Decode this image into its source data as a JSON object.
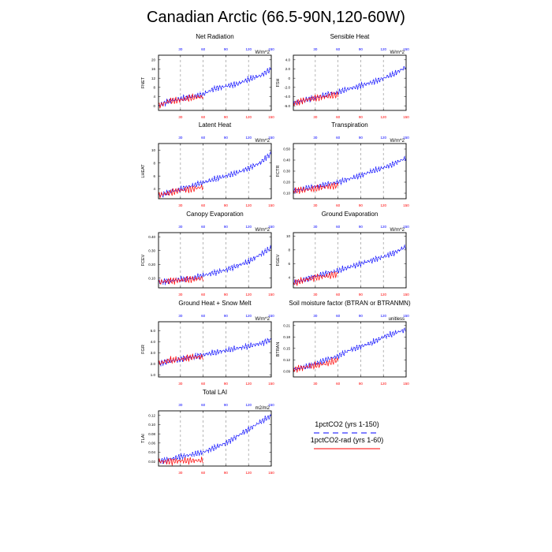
{
  "title": "Canadian Arctic (66.5-90N,120-60W)",
  "top_ticks": [
    "30",
    "60",
    "90",
    "120",
    "150"
  ],
  "bottom_ticks": [
    "30",
    "60",
    "90",
    "120",
    "150"
  ],
  "colors": {
    "series_a": "#0000ff",
    "series_b": "#ff0000",
    "top_tick": "#0000ff",
    "bottom_tick": "#ff0000",
    "dashed_grid": "#999999"
  },
  "legend": {
    "entries": [
      {
        "label": "1pctCO2 (yrs 1-150)",
        "color": "#0000ff",
        "style": "dashed"
      },
      {
        "label": "1pctCO2-rad (yrs 1-60)",
        "color": "#ff0000",
        "style": "solid"
      }
    ]
  },
  "chart_data": [
    {
      "type": "line",
      "title": "Net Radiation",
      "ylabel": "FNET",
      "units": "W/m^2",
      "xlim": [
        1,
        150
      ],
      "ylim": [
        -2,
        22
      ],
      "yticks": [
        "0",
        "4",
        "8",
        "12",
        "16",
        "20"
      ],
      "grid": "dashed vertical at 30, 60, 90, 120",
      "series": [
        {
          "color": "#0000ff",
          "x": [
            1,
            15,
            30,
            45,
            60,
            75,
            90,
            105,
            120,
            135,
            150
          ],
          "values": [
            0,
            2,
            3,
            4,
            5,
            7.5,
            8.5,
            9.5,
            11.5,
            13,
            16
          ]
        },
        {
          "color": "#ff0000",
          "x": [
            1,
            15,
            30,
            45,
            60
          ],
          "values": [
            0,
            2,
            2.5,
            3.5,
            4
          ]
        }
      ]
    },
    {
      "type": "line",
      "title": "Sensible Heat",
      "ylabel": "FSH",
      "units": "W/m^2",
      "xlim": [
        1,
        150
      ],
      "ylim": [
        -7,
        5
      ],
      "yticks": [
        "-6.0",
        "-4.0",
        "-2.0",
        "0",
        "2.0",
        "4.0"
      ],
      "grid": "dashed vertical at 30, 60, 90, 120",
      "series": [
        {
          "color": "#0000ff",
          "x": [
            1,
            15,
            30,
            45,
            60,
            75,
            90,
            105,
            120,
            135,
            150
          ],
          "values": [
            -5.5,
            -4.8,
            -4.2,
            -3.6,
            -3,
            -2.3,
            -1.6,
            -0.9,
            0,
            1,
            2.5
          ]
        },
        {
          "color": "#ff0000",
          "x": [
            1,
            15,
            30,
            45,
            60
          ],
          "values": [
            -5.5,
            -4.8,
            -4.3,
            -4,
            -3.6
          ]
        }
      ]
    },
    {
      "type": "line",
      "title": "Latent Heat",
      "ylabel": "LHEAT",
      "units": "W/m^2",
      "xlim": [
        1,
        150
      ],
      "ylim": [
        2.5,
        11
      ],
      "yticks": [
        "4",
        "6",
        "8",
        "10"
      ],
      "grid": "dashed vertical at 30, 60, 90, 120",
      "series": [
        {
          "color": "#0000ff",
          "x": [
            1,
            15,
            30,
            45,
            60,
            75,
            90,
            105,
            120,
            135,
            150
          ],
          "values": [
            3,
            3.5,
            4,
            4.5,
            5,
            5.5,
            6,
            6.5,
            7.2,
            8,
            9.5
          ]
        },
        {
          "color": "#ff0000",
          "x": [
            1,
            15,
            30,
            45,
            60
          ],
          "values": [
            3,
            3.4,
            3.8,
            4,
            4.3
          ]
        }
      ]
    },
    {
      "type": "line",
      "title": "Transpiration",
      "ylabel": "FCTR",
      "units": "W/m^2",
      "xlim": [
        1,
        150
      ],
      "ylim": [
        0.05,
        0.55
      ],
      "yticks": [
        "0.10",
        "0.20",
        "0.30",
        "0.40",
        "0.50"
      ],
      "grid": "dashed vertical at 30, 60, 90, 120",
      "series": [
        {
          "color": "#0000ff",
          "x": [
            1,
            15,
            30,
            45,
            60,
            75,
            90,
            105,
            120,
            135,
            150
          ],
          "values": [
            0.12,
            0.14,
            0.16,
            0.18,
            0.2,
            0.23,
            0.26,
            0.3,
            0.33,
            0.37,
            0.42
          ]
        },
        {
          "color": "#ff0000",
          "x": [
            1,
            15,
            30,
            45,
            60
          ],
          "values": [
            0.12,
            0.13,
            0.14,
            0.16,
            0.17
          ]
        }
      ]
    },
    {
      "type": "line",
      "title": "Canopy Evaporation",
      "ylabel": "FCEV",
      "units": "W/m^2",
      "xlim": [
        1,
        150
      ],
      "ylim": [
        0.03,
        0.43
      ],
      "yticks": [
        "0.10",
        "0.20",
        "0.30",
        "0.40"
      ],
      "grid": "dashed vertical at 30, 60, 90, 120",
      "series": [
        {
          "color": "#0000ff",
          "x": [
            1,
            15,
            30,
            45,
            60,
            75,
            90,
            105,
            120,
            135,
            150
          ],
          "values": [
            0.07,
            0.08,
            0.09,
            0.1,
            0.12,
            0.14,
            0.16,
            0.19,
            0.22,
            0.27,
            0.32
          ]
        },
        {
          "color": "#ff0000",
          "x": [
            1,
            15,
            30,
            45,
            60
          ],
          "values": [
            0.07,
            0.08,
            0.085,
            0.09,
            0.1
          ]
        }
      ]
    },
    {
      "type": "line",
      "title": "Ground Evaporation",
      "ylabel": "FGEV",
      "units": "W/m^2",
      "xlim": [
        1,
        150
      ],
      "ylim": [
        2.5,
        10.5
      ],
      "yticks": [
        "4",
        "6",
        "8",
        "10"
      ],
      "grid": "dashed vertical at 30, 60, 90, 120",
      "series": [
        {
          "color": "#0000ff",
          "x": [
            1,
            15,
            30,
            45,
            60,
            75,
            90,
            105,
            120,
            135,
            150
          ],
          "values": [
            3.2,
            3.7,
            4.2,
            4.6,
            5,
            5.5,
            6,
            6.5,
            7,
            7.6,
            8.5
          ]
        },
        {
          "color": "#ff0000",
          "x": [
            1,
            15,
            30,
            45,
            60
          ],
          "values": [
            3.2,
            3.6,
            4,
            4.2,
            4.5
          ]
        }
      ]
    },
    {
      "type": "line",
      "title": "Ground Heat + Snow Melt",
      "ylabel": "FGR",
      "units": "W/m^2",
      "xlim": [
        1,
        150
      ],
      "ylim": [
        0.8,
        5.8
      ],
      "yticks": [
        "1.0",
        "2.0",
        "3.0",
        "4.0",
        "5.0"
      ],
      "grid": "dashed vertical at 30, 60, 90, 120",
      "series": [
        {
          "color": "#0000ff",
          "x": [
            1,
            15,
            30,
            45,
            60,
            75,
            90,
            105,
            120,
            135,
            150
          ],
          "values": [
            2,
            2.2,
            2.4,
            2.6,
            2.8,
            3,
            3.2,
            3.4,
            3.6,
            3.8,
            4.2
          ]
        },
        {
          "color": "#ff0000",
          "x": [
            1,
            15,
            30,
            45,
            60
          ],
          "values": [
            2,
            2.3,
            2.4,
            2.6,
            2.6
          ]
        }
      ]
    },
    {
      "type": "line",
      "title": "Soil moisture factor (BTRAN or BTRANMN)",
      "ylabel": "BTRAN",
      "units": "unitless",
      "xlim": [
        1,
        150
      ],
      "ylim": [
        0.075,
        0.22
      ],
      "yticks": [
        "0.09",
        "0.12",
        "0.15",
        "0.18",
        "0.21"
      ],
      "grid": "dashed vertical at 30, 60, 90, 120",
      "series": [
        {
          "color": "#0000ff",
          "x": [
            1,
            15,
            30,
            45,
            60,
            75,
            90,
            105,
            120,
            135,
            150
          ],
          "values": [
            0.095,
            0.1,
            0.11,
            0.12,
            0.13,
            0.145,
            0.155,
            0.165,
            0.18,
            0.19,
            0.2
          ]
        },
        {
          "color": "#ff0000",
          "x": [
            1,
            15,
            30,
            45,
            60
          ],
          "values": [
            0.095,
            0.1,
            0.105,
            0.11,
            0.12
          ]
        }
      ]
    },
    {
      "type": "line",
      "title": "Total LAI",
      "ylabel": "TLAI",
      "units": "m2/m2",
      "xlim": [
        1,
        150
      ],
      "ylim": [
        0.01,
        0.13
      ],
      "yticks": [
        "0.02",
        "0.04",
        "0.06",
        "0.08",
        "0.10",
        "0.12"
      ],
      "grid": "dashed vertical at 30, 60, 90, 120",
      "series": [
        {
          "color": "#0000ff",
          "x": [
            1,
            15,
            30,
            45,
            60,
            75,
            90,
            105,
            120,
            135,
            150
          ],
          "values": [
            0.02,
            0.025,
            0.03,
            0.035,
            0.04,
            0.05,
            0.06,
            0.075,
            0.09,
            0.105,
            0.12
          ]
        },
        {
          "color": "#ff0000",
          "x": [
            1,
            15,
            30,
            45,
            60
          ],
          "values": [
            0.02,
            0.02,
            0.021,
            0.022,
            0.022
          ]
        }
      ]
    }
  ]
}
